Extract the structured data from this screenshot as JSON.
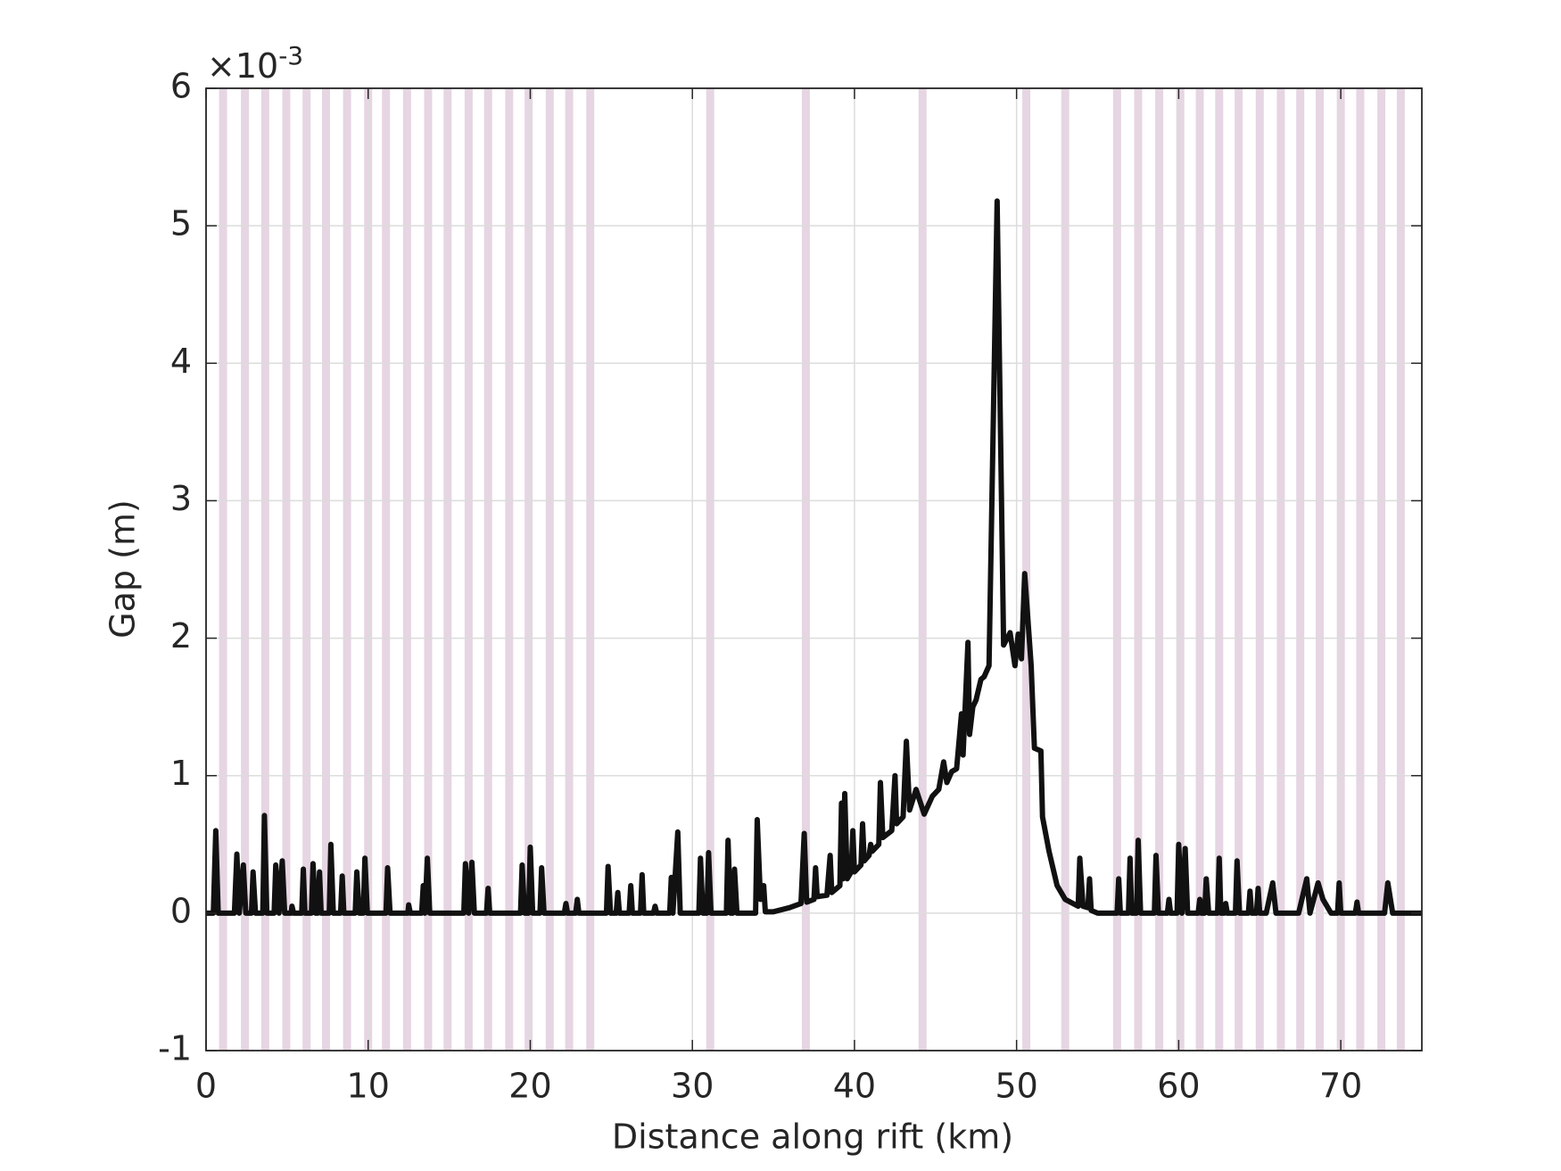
{
  "chart_data": {
    "type": "line",
    "xlabel": "Distance along rift (km)",
    "ylabel": "Gap (m)",
    "y_exponent": {
      "base": "×10",
      "power": "-3"
    },
    "xlim": [
      0,
      75
    ],
    "xticks": [
      0,
      10,
      20,
      30,
      40,
      50,
      60,
      70
    ],
    "ylim": [
      -1,
      6
    ],
    "yticks": [
      -1,
      0,
      1,
      2,
      3,
      4,
      5,
      6
    ],
    "grid": true,
    "color": "#111111",
    "bands": {
      "color": "#e6d5e2",
      "x": [
        1.05,
        2.4,
        3.65,
        4.95,
        6.2,
        7.4,
        8.7,
        10,
        11.1,
        12.4,
        13.7,
        14.9,
        16.2,
        17.4,
        18.7,
        19.9,
        21.2,
        22.4,
        23.7,
        31.1,
        37.0,
        44.2,
        50.6,
        53.0,
        56.2,
        57.5,
        58.8,
        60.1,
        61.3,
        62.5,
        63.7,
        65.0,
        66.3,
        67.5,
        68.7,
        70.0,
        71.2,
        72.5,
        73.7
      ]
    },
    "x": [
      0,
      0.45,
      0.6,
      0.75,
      1.75,
      1.9,
      2.05,
      2.3,
      2.45,
      2.8,
      2.9,
      3.05,
      3.5,
      3.6,
      3.75,
      4.2,
      4.3,
      4.5,
      4.7,
      4.85,
      5.25,
      5.3,
      5.4,
      5.9,
      6.0,
      6.1,
      6.5,
      6.6,
      6.75,
      6.9,
      7.0,
      7.1,
      7.6,
      7.7,
      7.85,
      8.3,
      8.4,
      8.5,
      9.2,
      9.3,
      9.45,
      9.7,
      9.8,
      9.95,
      11.1,
      11.2,
      11.35,
      12.45,
      12.5,
      12.6,
      13.3,
      13.4,
      13.5,
      13.65,
      13.8,
      15.9,
      16.0,
      16.2,
      16.4,
      16.55,
      17.3,
      17.4,
      17.5,
      19.4,
      19.5,
      19.65,
      19.9,
      20.0,
      20.15,
      20.6,
      20.7,
      20.85,
      22.1,
      22.2,
      22.3,
      22.8,
      22.9,
      23.0,
      24.7,
      24.8,
      24.95,
      25.3,
      25.4,
      25.5,
      26.1,
      26.2,
      26.3,
      26.8,
      26.9,
      27.0,
      27.6,
      27.7,
      27.8,
      28.6,
      28.7,
      28.8,
      29.1,
      29.25,
      30.4,
      30.5,
      30.65,
      30.9,
      31.0,
      31.15,
      32.1,
      32.2,
      32.35,
      32.5,
      32.6,
      32.75,
      33.9,
      34.0,
      34.2,
      34.4,
      34.5,
      35,
      36,
      36.7,
      36.9,
      37.05,
      37.5,
      37.6,
      37.7,
      38.3,
      38.5,
      38.6,
      39.1,
      39.2,
      39.3,
      39.4,
      39.55,
      39.8,
      39.9,
      40.0,
      40.4,
      40.5,
      40.6,
      40.9,
      41.0,
      41.1,
      41.5,
      41.6,
      41.75,
      42.3,
      42.5,
      42.6,
      43.0,
      43.2,
      43.4,
      43.8,
      44.3,
      44.8,
      45.2,
      45.5,
      45.7,
      46.0,
      46.3,
      46.6,
      46.7,
      47.0,
      47.1,
      47.3,
      47.5,
      47.8,
      48.0,
      48.3,
      48.8,
      49.2,
      49.6,
      49.9,
      50.1,
      50.3,
      50.5,
      50.9,
      51.1,
      51.5,
      51.6,
      52.0,
      52.5,
      53.0,
      53.8,
      53.9,
      54.1,
      54.4,
      54.5,
      54.6,
      55,
      56.2,
      56.3,
      56.4,
      56.9,
      57.0,
      57.1,
      57.4,
      57.5,
      57.65,
      58.5,
      58.6,
      58.75,
      59.3,
      59.4,
      59.5,
      59.9,
      60.0,
      60.2,
      60.4,
      60.55,
      61.2,
      61.3,
      61.4,
      61.6,
      61.7,
      61.85,
      62.4,
      62.5,
      62.6,
      62.8,
      62.9,
      63.0,
      63.5,
      63.6,
      63.75,
      64.3,
      64.4,
      64.5,
      64.8,
      64.9,
      65.0,
      65.4,
      65.8,
      66.0,
      67.4,
      67.9,
      68.1,
      68.6,
      68.9,
      69.4,
      69.8,
      69.9,
      70.0,
      70.9,
      71.0,
      71.1,
      72.7,
      72.9,
      73.2,
      75
    ],
    "values": [
      0,
      0,
      0.6,
      0,
      0,
      0.43,
      0,
      0.35,
      0,
      0,
      0.3,
      0,
      0,
      0.71,
      0,
      0,
      0.35,
      0,
      0.38,
      0,
      0,
      0.05,
      0,
      0,
      0.32,
      0,
      0,
      0.36,
      0,
      0,
      0.3,
      0,
      0,
      0.5,
      0,
      0,
      0.27,
      0,
      0,
      0.3,
      0,
      0,
      0.4,
      0,
      0,
      0.33,
      0,
      0,
      0.06,
      0,
      0,
      0.2,
      0,
      0.4,
      0,
      0,
      0.36,
      0,
      0.37,
      0,
      0,
      0.18,
      0,
      0,
      0.35,
      0,
      0,
      0.48,
      0,
      0,
      0.33,
      0,
      0,
      0.07,
      0,
      0,
      0.1,
      0,
      0,
      0.34,
      0,
      0,
      0.15,
      0,
      0,
      0.2,
      0,
      0,
      0.28,
      0,
      0,
      0.05,
      0,
      0,
      0.26,
      0,
      0.59,
      0,
      0,
      0.4,
      0,
      0,
      0.44,
      0,
      0,
      0.53,
      0,
      0,
      0.32,
      0,
      0,
      0.68,
      0.1,
      0.2,
      0.01,
      0.01,
      0.04,
      0.07,
      0.58,
      0.08,
      0.1,
      0.33,
      0.12,
      0.13,
      0.42,
      0.15,
      0.2,
      0.8,
      0.25,
      0.87,
      0.25,
      0.3,
      0.6,
      0.3,
      0.35,
      0.65,
      0.38,
      0.42,
      0.5,
      0.45,
      0.5,
      0.95,
      0.55,
      0.6,
      1.0,
      0.65,
      0.7,
      1.25,
      0.75,
      0.9,
      0.72,
      0.85,
      0.9,
      1.1,
      0.95,
      1.03,
      1.05,
      1.45,
      1.15,
      1.97,
      1.3,
      1.5,
      1.55,
      1.7,
      1.72,
      1.8,
      5.18,
      1.95,
      2.04,
      1.8,
      2.03,
      1.85,
      2.47,
      1.8,
      1.2,
      1.18,
      0.7,
      0.45,
      0.2,
      0.1,
      0.05,
      0.4,
      0.05,
      0.04,
      0.25,
      0.02,
      0,
      0,
      0.25,
      0,
      0,
      0.4,
      0,
      0,
      0.53,
      0,
      0,
      0.42,
      0,
      0,
      0.1,
      0,
      0,
      0.5,
      0,
      0.47,
      0,
      0,
      0.1,
      0,
      0,
      0.25,
      0,
      0,
      0.4,
      0,
      0,
      0.07,
      0,
      0,
      0.38,
      0,
      0,
      0.16,
      0,
      0,
      0.18,
      0,
      0,
      0.22,
      0,
      0,
      0.25,
      0,
      0.22,
      0.1,
      0,
      0,
      0.22,
      0,
      0,
      0.08,
      0,
      0,
      0.22,
      0,
      0
    ]
  }
}
